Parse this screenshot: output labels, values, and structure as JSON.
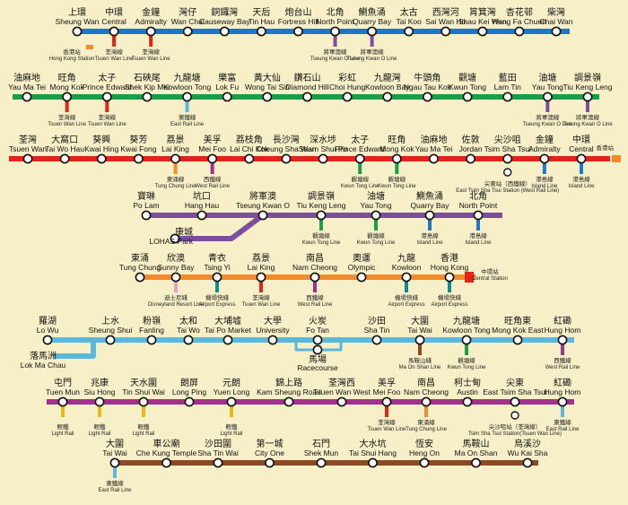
{
  "lines": [
    {
      "id": "island",
      "name": "Island Line",
      "color": "#1a77c9",
      "stations": [
        {
          "zh": "上環",
          "en": "Sheung Wan"
        },
        {
          "zh": "中環",
          "en": "Central"
        },
        {
          "zh": "金鐘",
          "en": "Admiralty"
        },
        {
          "zh": "灣仔",
          "en": "Wan Chai"
        },
        {
          "zh": "銅鑼灣",
          "en": "Causeway Bay"
        },
        {
          "zh": "天后",
          "en": "Tin Hau"
        },
        {
          "zh": "炮台山",
          "en": "Fortress Hill"
        },
        {
          "zh": "北角",
          "en": "North Point"
        },
        {
          "zh": "鰂魚涌",
          "en": "Quarry Bay"
        },
        {
          "zh": "太古",
          "en": "Tai Koo"
        },
        {
          "zh": "西灣河",
          "en": "Sai Wan Ho"
        },
        {
          "zh": "筲箕灣",
          "en": "Shau Kei Wan"
        },
        {
          "zh": "杏花邨",
          "en": "Heng Fa Chuen"
        },
        {
          "zh": "柴灣",
          "en": "Chai Wan"
        }
      ]
    },
    {
      "id": "kwuntong",
      "name": "Kwun Tong Line",
      "color": "#1a9e4a",
      "stations": [
        {
          "zh": "油麻地",
          "en": "Yau Ma Tei"
        },
        {
          "zh": "旺角",
          "en": "Mong Kok"
        },
        {
          "zh": "太子",
          "en": "Prince Edward"
        },
        {
          "zh": "石硤尾",
          "en": "Shek Kip Mei"
        },
        {
          "zh": "九龍塘",
          "en": "Kowloon Tong"
        },
        {
          "zh": "樂富",
          "en": "Lok Fu"
        },
        {
          "zh": "黃大仙",
          "en": "Wong Tai Sin"
        },
        {
          "zh": "鑽石山",
          "en": "Diamond Hill"
        },
        {
          "zh": "彩虹",
          "en": "Choi Hung"
        },
        {
          "zh": "九龍灣",
          "en": "Kowloon Bay"
        },
        {
          "zh": "牛頭角",
          "en": "Ngau Tau Kok"
        },
        {
          "zh": "觀塘",
          "en": "Kwun Tong"
        },
        {
          "zh": "藍田",
          "en": "Lam Tin"
        },
        {
          "zh": "油塘",
          "en": "Yau Tong"
        },
        {
          "zh": "調景嶺",
          "en": "Tiu Keng Leng"
        }
      ]
    },
    {
      "id": "tsuenwan",
      "name": "Tsuen Wan Line",
      "color": "#e2231a",
      "stations": [
        {
          "zh": "荃灣",
          "en": "Tsuen Wan"
        },
        {
          "zh": "大窩口",
          "en": "Tai Wo Hau"
        },
        {
          "zh": "葵興",
          "en": "Kwai Hing"
        },
        {
          "zh": "葵芳",
          "en": "Kwai Fong"
        },
        {
          "zh": "荔景",
          "en": "Lai King"
        },
        {
          "zh": "美孚",
          "en": "Mei Foo"
        },
        {
          "zh": "荔枝角",
          "en": "Lai Chi Kok"
        },
        {
          "zh": "長沙灣",
          "en": "Cheung Sha Wan"
        },
        {
          "zh": "深水埗",
          "en": "Sham Shui Po"
        },
        {
          "zh": "太子",
          "en": "Prince Edward"
        },
        {
          "zh": "旺角",
          "en": "Mong Kok"
        },
        {
          "zh": "油麻地",
          "en": "Yau Ma Tei"
        },
        {
          "zh": "佐敦",
          "en": "Jordan"
        },
        {
          "zh": "尖沙咀",
          "en": "Tsim Sha Tsui"
        },
        {
          "zh": "金鐘",
          "en": "Admiralty"
        },
        {
          "zh": "中環",
          "en": "Central"
        }
      ]
    },
    {
      "id": "tko",
      "name": "Tseung Kwan O Line",
      "color": "#7d4e9e",
      "stations": [
        {
          "zh": "寶琳",
          "en": "Po Lam"
        },
        {
          "zh": "坑口",
          "en": "Hang Hau"
        },
        {
          "zh": "將軍澳",
          "en": "Tseung Kwan O"
        },
        {
          "zh": "調景嶺",
          "en": "Tiu Keng Leng"
        },
        {
          "zh": "油塘",
          "en": "Yau Tong"
        },
        {
          "zh": "鰂魚涌",
          "en": "Quarry Bay"
        },
        {
          "zh": "北角",
          "en": "North Point"
        }
      ],
      "branch": {
        "zh": "康城",
        "en": "LOHAS Park"
      }
    },
    {
      "id": "tungchung",
      "name": "Tung Chung Line",
      "color": "#f38b2a",
      "stations": [
        {
          "zh": "東涌",
          "en": "Tung Chung"
        },
        {
          "zh": "欣澳",
          "en": "Sunny Bay"
        },
        {
          "zh": "青衣",
          "en": "Tsing Yi"
        },
        {
          "zh": "荔景",
          "en": "Lai King"
        },
        {
          "zh": "南昌",
          "en": "Nam Cheong"
        },
        {
          "zh": "奧運",
          "en": "Olympic"
        },
        {
          "zh": "九龍",
          "en": "Kowloon"
        },
        {
          "zh": "香港",
          "en": "Hong Kong"
        }
      ]
    },
    {
      "id": "eastrail",
      "name": "East Rail Line",
      "color": "#5bb8dd",
      "stations": [
        {
          "zh": "羅湖",
          "en": "Lo Wu"
        },
        {
          "zh": "上水",
          "en": "Sheung Shui"
        },
        {
          "zh": "粉嶺",
          "en": "Fanling"
        },
        {
          "zh": "太和",
          "en": "Tai Wo"
        },
        {
          "zh": "大埔墟",
          "en": "Tai Po Market"
        },
        {
          "zh": "大學",
          "en": "University"
        },
        {
          "zh": "火炭",
          "en": "Fo Tan"
        },
        {
          "zh": "沙田",
          "en": "Sha Tin"
        },
        {
          "zh": "大圍",
          "en": "Tai Wai"
        },
        {
          "zh": "九龍塘",
          "en": "Kowloon Tong"
        },
        {
          "zh": "旺角東",
          "en": "Mong Kok East"
        },
        {
          "zh": "紅磡",
          "en": "Hung Hom"
        }
      ],
      "branch": {
        "zh": "落馬洲",
        "en": "Lok Ma Chau"
      },
      "racecourse": {
        "zh": "馬場",
        "en": "Racecourse"
      }
    },
    {
      "id": "westrail",
      "name": "West Rail Line",
      "color": "#a3308c",
      "stations": [
        {
          "zh": "屯門",
          "en": "Tuen Mun"
        },
        {
          "zh": "兆康",
          "en": "Siu Hong"
        },
        {
          "zh": "天水圍",
          "en": "Tin Shui Wai"
        },
        {
          "zh": "朗屏",
          "en": "Long Ping"
        },
        {
          "zh": "元朗",
          "en": "Yuen Long"
        },
        {
          "zh": "錦上路",
          "en": "Kam Sheung Road"
        },
        {
          "zh": "荃灣西",
          "en": "Tsuen Wan West"
        },
        {
          "zh": "美孚",
          "en": "Mei Foo"
        },
        {
          "zh": "南昌",
          "en": "Nam Cheong"
        },
        {
          "zh": "柯士甸",
          "en": "Austin"
        },
        {
          "zh": "尖東",
          "en": "East Tsim Sha Tsui"
        },
        {
          "zh": "紅磡",
          "en": "Hung Hom"
        }
      ]
    },
    {
      "id": "maonshan",
      "name": "Ma On Shan Line",
      "color": "#8a4b24",
      "stations": [
        {
          "zh": "大圍",
          "en": "Tai Wai"
        },
        {
          "zh": "車公廟",
          "en": "Che Kung Temple"
        },
        {
          "zh": "沙田圍",
          "en": "Sha Tin Wai"
        },
        {
          "zh": "第一城",
          "en": "City One"
        },
        {
          "zh": "石門",
          "en": "Shek Mun"
        },
        {
          "zh": "大水坑",
          "en": "Tai Shui Hang"
        },
        {
          "zh": "恆安",
          "en": "Heng On"
        },
        {
          "zh": "馬鞍山",
          "en": "Ma On Shan"
        },
        {
          "zh": "烏溪沙",
          "en": "Wu Kai Sha"
        }
      ]
    }
  ],
  "special": {
    "hk_station": {
      "zh": "香港站",
      "en": "Hong Kong Station"
    },
    "central_station": {
      "zh": "中環站",
      "en": "Central Station"
    },
    "tst_note": {
      "zh": "尖東站（西鐵線）",
      "en": "East Tsim Sha Tsui Station (West Rail Line)"
    },
    "etst_note": {
      "zh": "尖沙咀站（荃灣線）",
      "en": "Tsim Sha Tsui Station(Tsuen Wan Line)"
    },
    "light_rail": {
      "zh": "輕鐵",
      "en": "Light Rail"
    }
  },
  "transfers": {
    "tw": {
      "zh": "荃灣線",
      "en": "Tsuen Wan Line"
    },
    "island": {
      "zh": "港島線",
      "en": "Island Line"
    },
    "tko": {
      "zh": "將軍澳線",
      "en": "Tseung Kwan O Line"
    },
    "east": {
      "zh": "東鐵線",
      "en": "East Rail Line"
    },
    "kt": {
      "zh": "觀塘線",
      "en": "Kwun Tong Line"
    },
    "west": {
      "zh": "西鐵線",
      "en": "West Rail Line"
    },
    "tc": {
      "zh": "東涌線",
      "en": "Tung Chung Line"
    },
    "ae": {
      "zh": "機場快綫",
      "en": "Airport Express"
    },
    "dr": {
      "zh": "迪士尼綫",
      "en": "Disneyland Resort Line"
    },
    "mos": {
      "zh": "馬鞍山綫",
      "en": "Ma On Shan Line"
    }
  }
}
